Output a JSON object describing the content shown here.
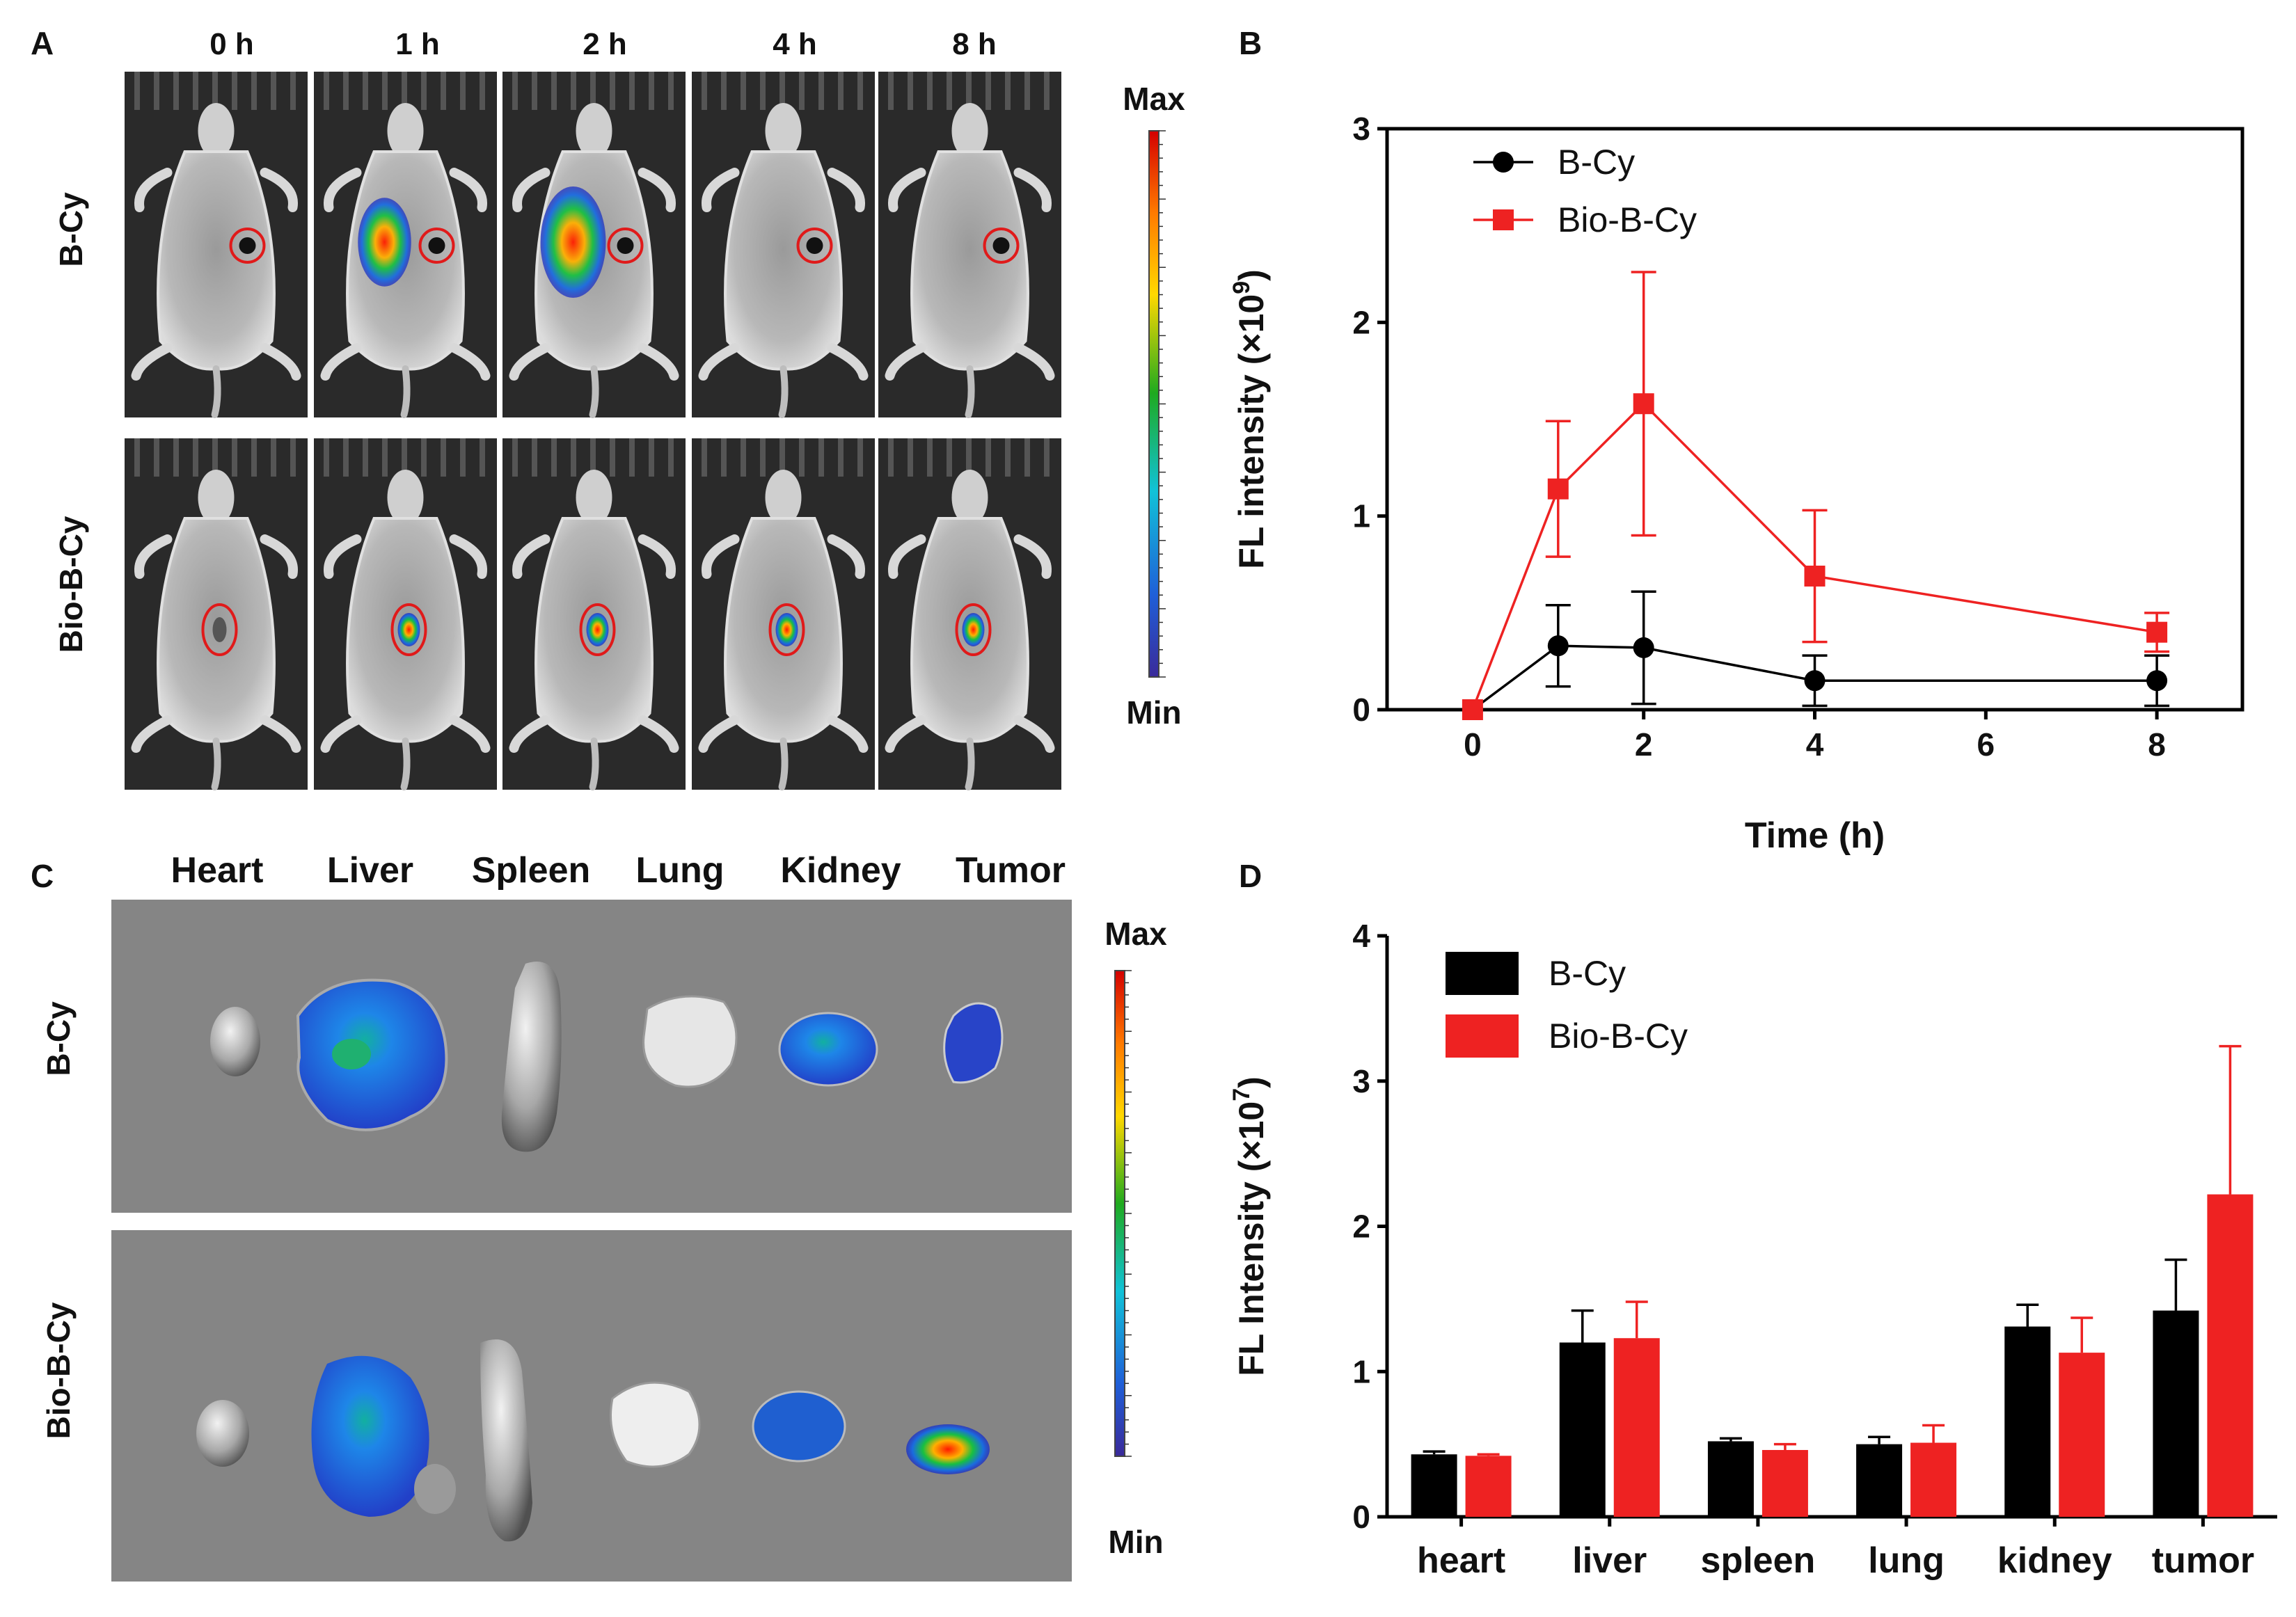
{
  "panels": {
    "A": {
      "letter": "A",
      "time_labels": [
        "0 h",
        "1 h",
        "2 h",
        "4 h",
        "8 h"
      ],
      "row_labels": [
        "B-Cy",
        "Bio-B-Cy"
      ],
      "colorbar": {
        "max_label": "Max",
        "min_label": "Min"
      }
    },
    "B": {
      "letter": "B"
    },
    "C": {
      "letter": "C",
      "organ_labels": [
        "Heart",
        "Liver",
        "Spleen",
        "Lung",
        "Kidney",
        "Tumor"
      ],
      "row_labels": [
        "B-Cy",
        "Bio-B-Cy"
      ],
      "colorbar": {
        "max_label": "Max",
        "min_label": "Min"
      }
    },
    "D": {
      "letter": "D"
    }
  },
  "colors": {
    "b_cy": "#000000",
    "bio_b_cy": "#ee2222",
    "image_bg_dark": "#2a2a2a",
    "image_bg_light": "#7b7b7b"
  },
  "chart_data": [
    {
      "panel": "B",
      "type": "line",
      "xlabel": "Time (h)",
      "ylabel": "FL intensity (×10",
      "ylabel_sup": "9",
      "ylabel_end": ")",
      "xlim": [
        -1,
        9
      ],
      "ylim": [
        0,
        3
      ],
      "xticks": [
        0,
        2,
        4,
        6,
        8
      ],
      "yticks": [
        0,
        1,
        2,
        3
      ],
      "legend_position": "top-left",
      "series": [
        {
          "name": "B-Cy",
          "marker": "circle",
          "color": "#000000",
          "x": [
            0,
            1,
            2,
            4,
            8
          ],
          "y": [
            0,
            0.33,
            0.32,
            0.15,
            0.15
          ],
          "err": [
            0,
            0.21,
            0.29,
            0.13,
            0.13
          ]
        },
        {
          "name": "Bio-B-Cy",
          "marker": "square",
          "color": "#ee2222",
          "x": [
            0,
            1,
            2,
            4,
            8
          ],
          "y": [
            0,
            1.14,
            1.58,
            0.69,
            0.4
          ],
          "err": [
            0,
            0.35,
            0.68,
            0.34,
            0.1
          ]
        }
      ]
    },
    {
      "panel": "D",
      "type": "bar",
      "xlabel": "",
      "ylabel": "FL Intensity (×10",
      "ylabel_sup": "7",
      "ylabel_end": ")",
      "ylim": [
        0,
        4
      ],
      "yticks": [
        0,
        1,
        2,
        3,
        4
      ],
      "legend_position": "top-left",
      "categories": [
        "heart",
        "liver",
        "spleen",
        "lung",
        "kidney",
        "tumor"
      ],
      "series": [
        {
          "name": "B-Cy",
          "color": "#000000",
          "values": [
            0.43,
            1.2,
            0.52,
            0.5,
            1.31,
            1.42
          ],
          "err": [
            0.02,
            0.22,
            0.02,
            0.05,
            0.15,
            0.35
          ]
        },
        {
          "name": "Bio-B-Cy",
          "color": "#ee2222",
          "values": [
            0.42,
            1.23,
            0.46,
            0.51,
            1.13,
            2.22
          ],
          "err": [
            0.01,
            0.25,
            0.04,
            0.12,
            0.24,
            1.02
          ]
        }
      ]
    }
  ]
}
